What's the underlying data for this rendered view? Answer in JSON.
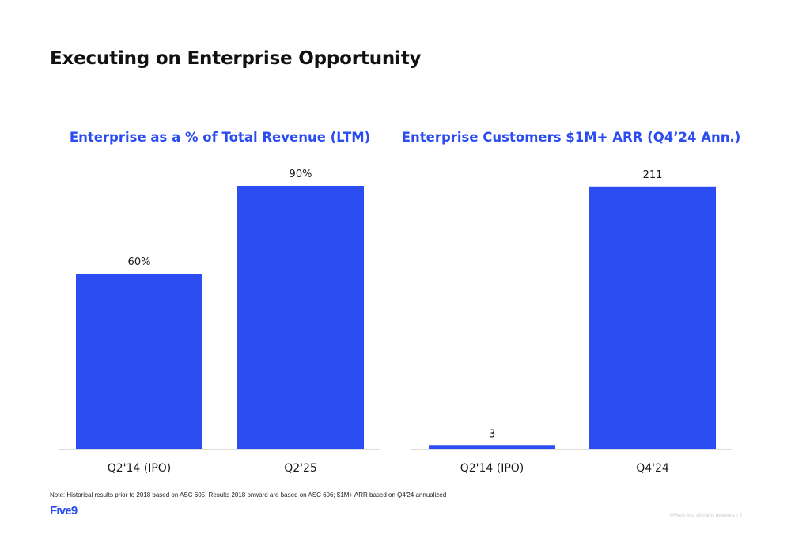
{
  "slide": {
    "title": "Executing on Enterprise Opportunity",
    "footnote": "Note: Historical results prior to 2018 based on ASC 605; Results 2018 onward are based on ASC 606; $1M+ ARR based on Q4'24 annualized",
    "logo": "Five9",
    "copyright": "©Five9, Inc. All rights reserved. | 9"
  },
  "colors": {
    "bar": "#2b4cf0",
    "title": "#2b4cf0",
    "axis": "#dddddd"
  },
  "chart_data": [
    {
      "type": "bar",
      "title": "Enterprise as a % of Total Revenue (LTM)",
      "categories": [
        "Q2'14 (IPO)",
        "Q2'25"
      ],
      "values": [
        60,
        90
      ],
      "value_labels": [
        "60%",
        "90%"
      ],
      "ylim": [
        0,
        100
      ],
      "xlabel": "",
      "ylabel": "",
      "grid": false,
      "legend": "none"
    },
    {
      "type": "bar",
      "title": "Enterprise Customers $1M+ ARR (Q4’24 Ann.)",
      "categories": [
        "Q2'14 (IPO)",
        "Q4'24"
      ],
      "values": [
        3,
        211
      ],
      "value_labels": [
        "3",
        "211"
      ],
      "ylim": [
        0,
        235
      ],
      "xlabel": "",
      "ylabel": "",
      "grid": false,
      "legend": "none"
    }
  ]
}
